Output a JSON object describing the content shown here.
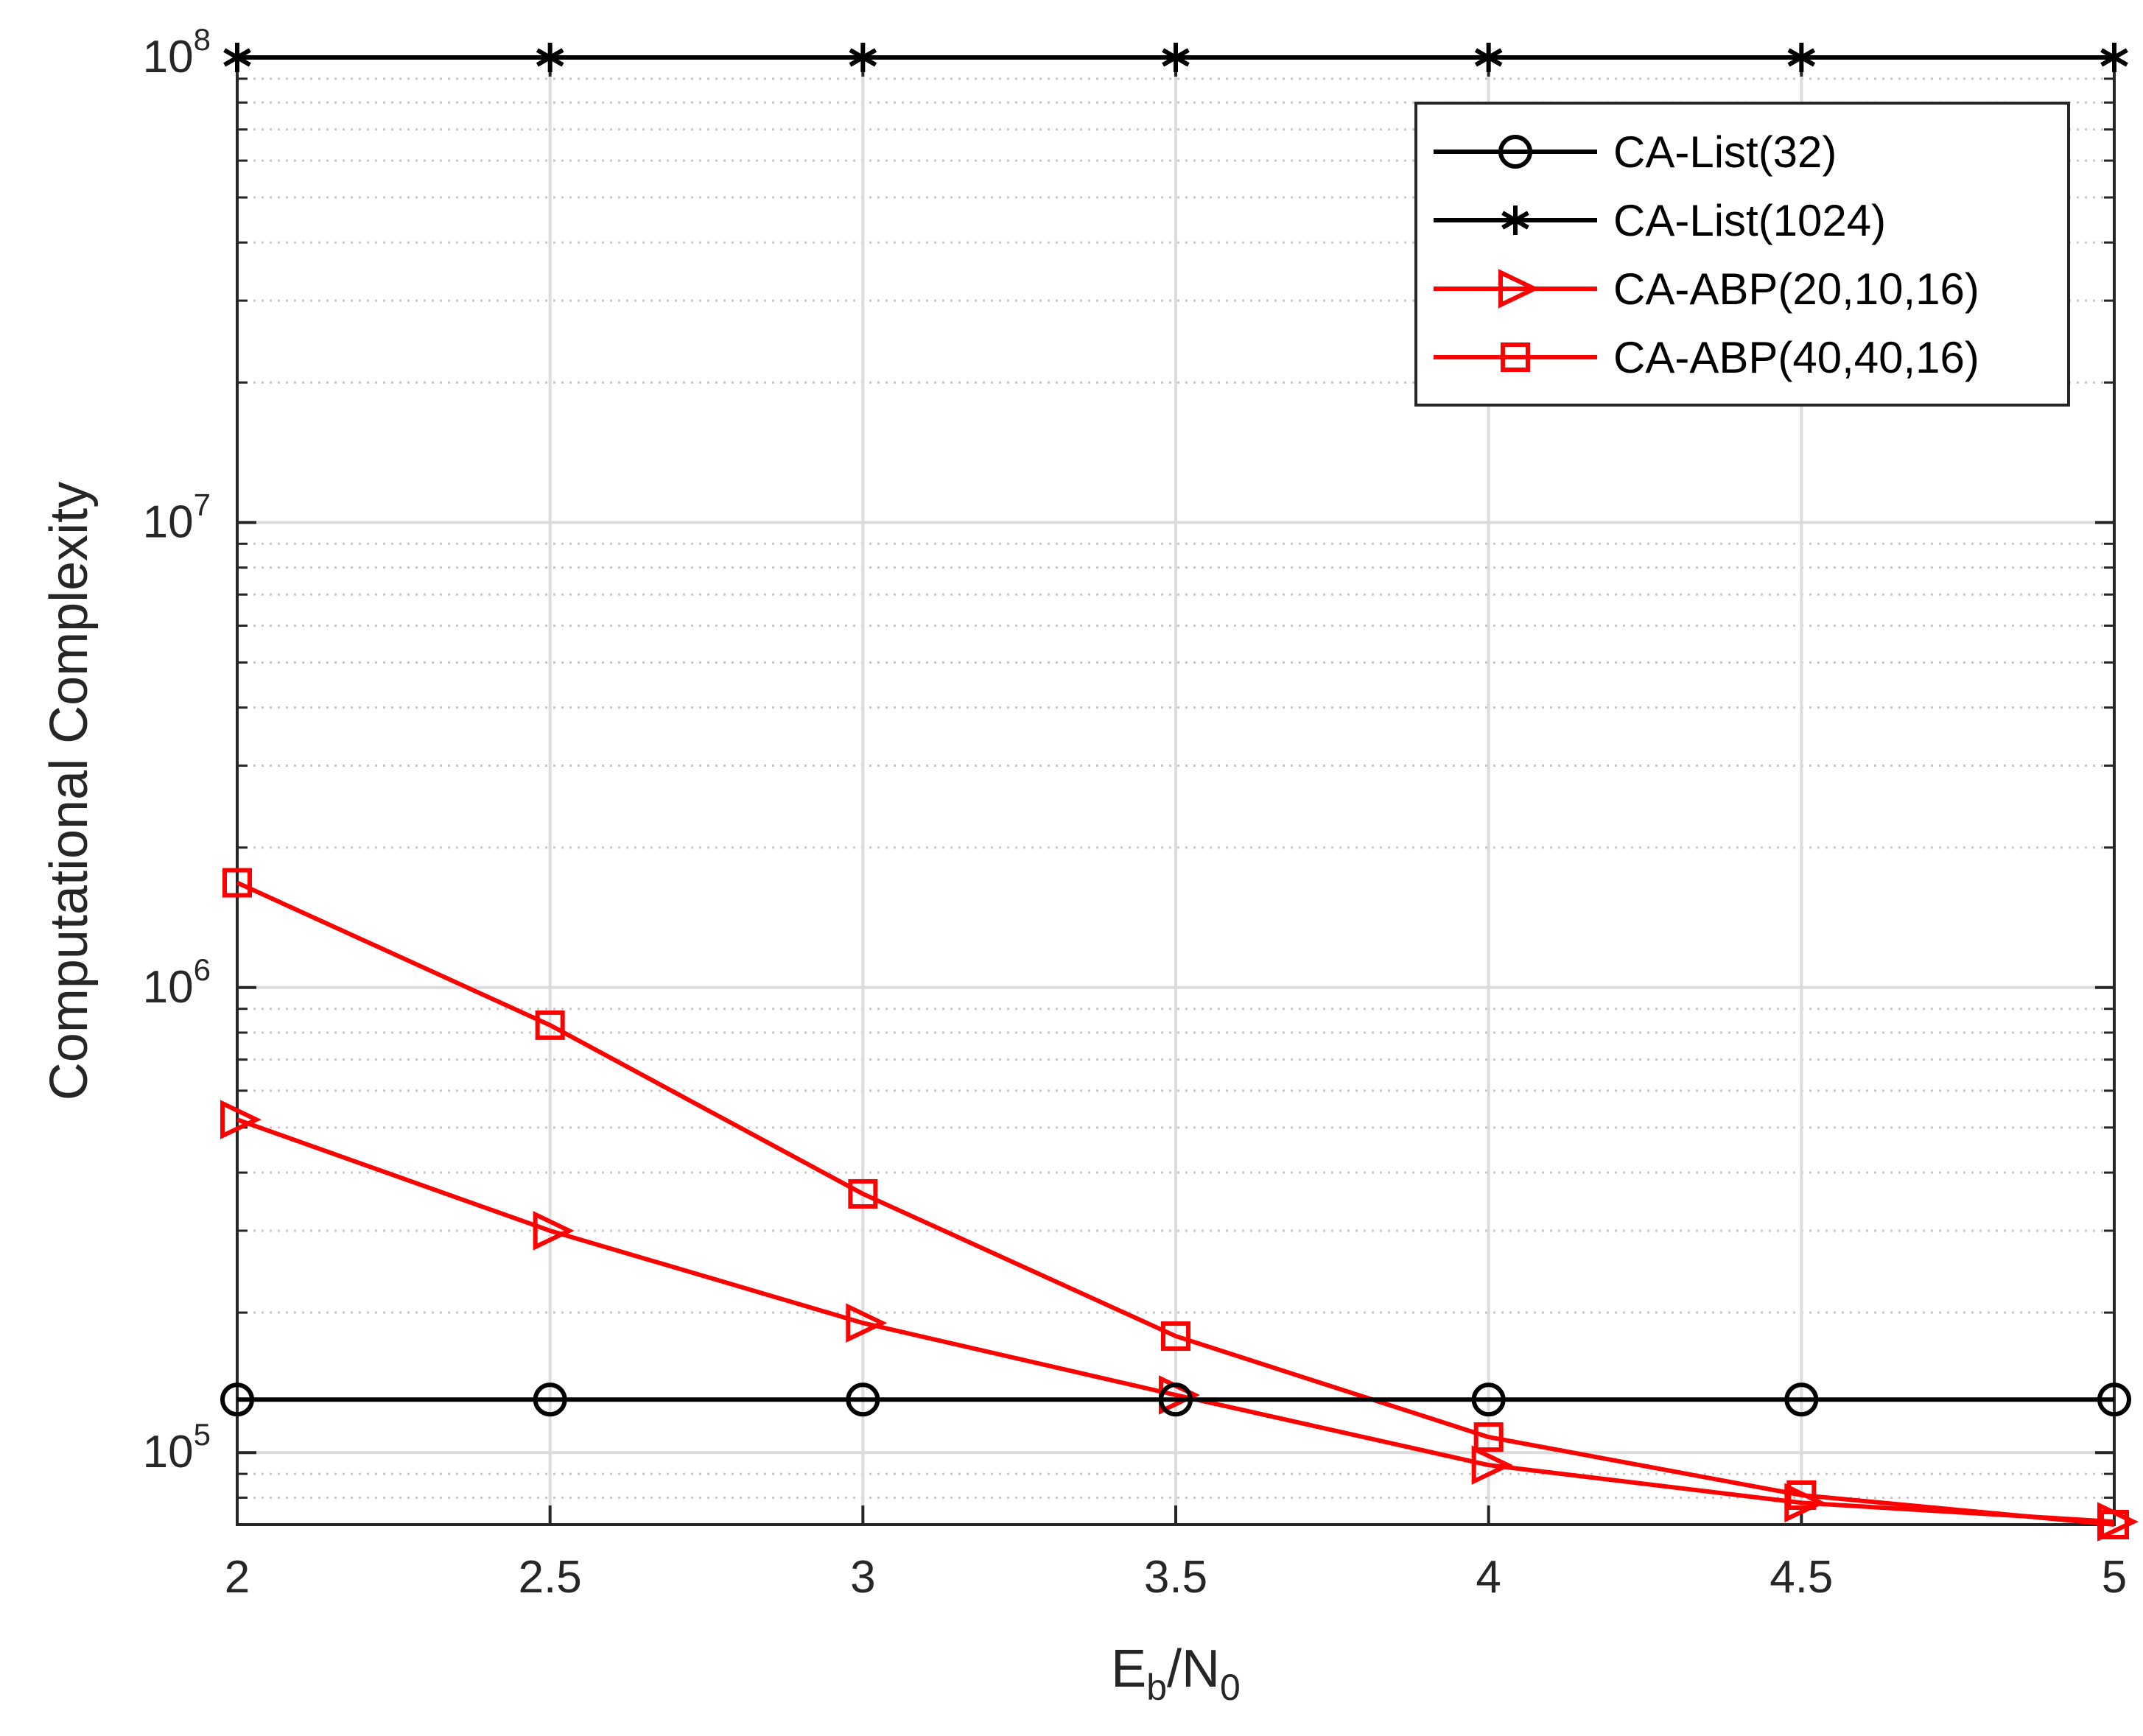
{
  "chart_data": {
    "type": "line",
    "title": "",
    "xlabel": {
      "base": "E",
      "sub1": "b",
      "mid": "/N",
      "sub2": "0"
    },
    "ylabel": "Computational Complexity",
    "x": [
      2,
      2.5,
      3,
      3.5,
      4,
      4.5,
      5
    ],
    "xlim": [
      2,
      5
    ],
    "ylim": [
      70000,
      100000000
    ],
    "yscale": "log",
    "grid": true,
    "minor_grid": true,
    "x_ticks": [
      2,
      2.5,
      3,
      3.5,
      4,
      4.5,
      5
    ],
    "x_tick_labels": [
      "2",
      "2.5",
      "3",
      "3.5",
      "4",
      "4.5",
      "5"
    ],
    "y_ticks": [
      {
        "value": 100000,
        "base": "10",
        "exp": "5"
      },
      {
        "value": 1000000,
        "base": "10",
        "exp": "6"
      },
      {
        "value": 10000000,
        "base": "10",
        "exp": "7"
      },
      {
        "value": 100000000,
        "base": "10",
        "exp": "8"
      }
    ],
    "legend_position": "top-right",
    "series": [
      {
        "name": "CA-List(32)",
        "color": "#000000",
        "marker": "circle",
        "values": [
          130000,
          130000,
          130000,
          130000,
          130000,
          130000,
          130000
        ]
      },
      {
        "name": "CA-List(1024)",
        "color": "#000000",
        "marker": "asterisk",
        "values": [
          100000000,
          100000000,
          100000000,
          100000000,
          100000000,
          100000000,
          100000000
        ]
      },
      {
        "name": "CA-ABP(20,10,16)",
        "color": "#ff0000",
        "marker": "triangle-right",
        "values": [
          520000,
          300000,
          190000,
          133000,
          94000,
          78000,
          71000
        ]
      },
      {
        "name": "CA-ABP(40,40,16)",
        "color": "#ff0000",
        "marker": "square",
        "values": [
          1680000,
          830000,
          360000,
          178000,
          108000,
          81000,
          70000
        ]
      }
    ]
  }
}
